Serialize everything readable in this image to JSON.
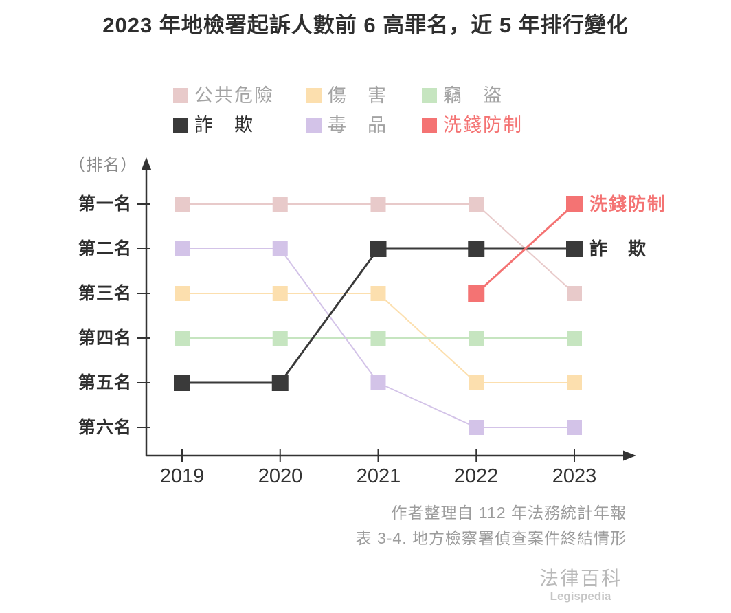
{
  "title": "2023 年地檢署起訴人數前 6 高罪名，近 5 年排行變化",
  "chart_data": {
    "type": "line",
    "subtype": "bump-rank-chart",
    "title": "2023 年地檢署起訴人數前 6 高罪名，近 5 年排行變化",
    "y_axis_label": "（排名）",
    "rank_labels": [
      "第一名",
      "第二名",
      "第三名",
      "第四名",
      "第五名",
      "第六名"
    ],
    "x_categories": [
      "2019",
      "2020",
      "2021",
      "2022",
      "2023"
    ],
    "y_direction": "rank 1 at top, rank 6 at bottom",
    "grid": false,
    "legend_position": "top",
    "series": [
      {
        "name": "公共危險",
        "color": "#e8caca",
        "label_color": "#a3a3a3",
        "emphasis": false,
        "ranks": [
          1,
          1,
          1,
          1,
          3
        ]
      },
      {
        "name": "傷　害",
        "color": "#fcdfae",
        "label_color": "#a3a3a3",
        "emphasis": false,
        "ranks": [
          3,
          3,
          3,
          5,
          5
        ]
      },
      {
        "name": "竊　盜",
        "color": "#c6e5c0",
        "label_color": "#a3a3a3",
        "emphasis": false,
        "ranks": [
          4,
          4,
          4,
          4,
          4
        ]
      },
      {
        "name": "毒　品",
        "color": "#d3c3e8",
        "label_color": "#a3a3a3",
        "emphasis": false,
        "ranks": [
          2,
          2,
          5,
          6,
          6
        ]
      },
      {
        "name": "詐　欺",
        "color": "#3a3a3a",
        "label_color": "#2f2f2f",
        "emphasis": true,
        "ranks": [
          5,
          5,
          2,
          2,
          2
        ],
        "end_label": "詐　欺"
      },
      {
        "name": "洗錢防制",
        "color": "#f47373",
        "label_color": "#f47373",
        "emphasis": true,
        "ranks": [
          null,
          null,
          null,
          3,
          1
        ],
        "end_label": "洗錢防制"
      }
    ],
    "axis_color": "#333333"
  },
  "source": {
    "line1": "作者整理自 112 年法務統計年報",
    "line2": "表 3-4. 地方檢察署偵查案件終結情形"
  },
  "branding": {
    "name": "法律百科",
    "subtitle": "Legispedia"
  }
}
